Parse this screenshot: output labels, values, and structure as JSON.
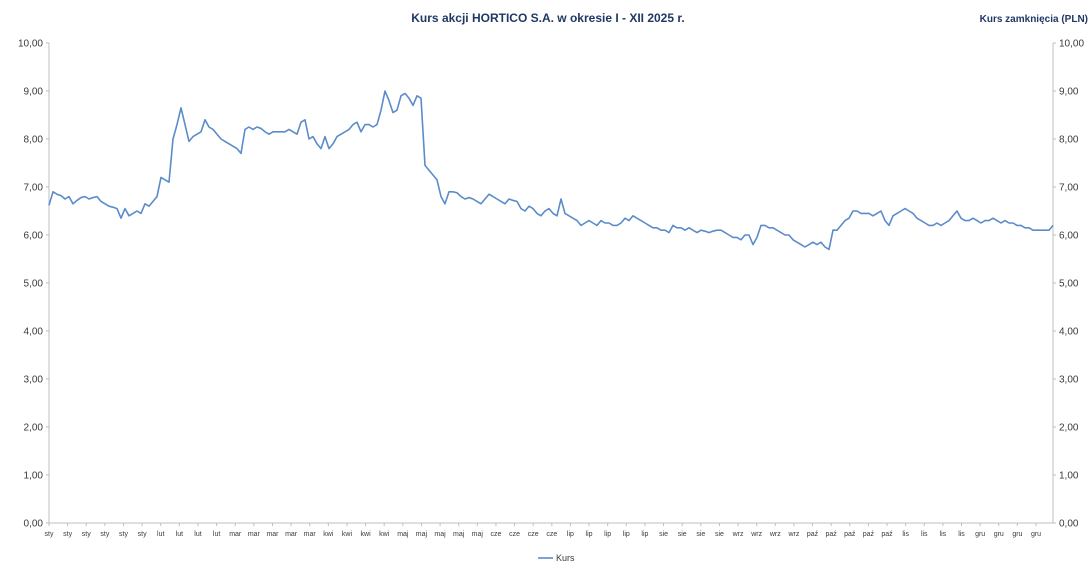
{
  "chart_data": {
    "type": "line",
    "title": "Kurs akcji HORTICO S.A. w okresie I - XII 2025 r.",
    "ylabel_right": "Kurs zamknięcia (PLN)",
    "ylim": [
      0,
      10
    ],
    "yticks": [
      "0,00",
      "1,00",
      "2,00",
      "3,00",
      "4,00",
      "5,00",
      "6,00",
      "7,00",
      "8,00",
      "9,00",
      "10,00"
    ],
    "grid": false,
    "legend": "bottom",
    "line_color": "#5b8cc9",
    "x_labels": [
      "sty",
      "sty",
      "sty",
      "sty",
      "sty",
      "sty",
      "lut",
      "lut",
      "lut",
      "lut",
      "mar",
      "mar",
      "mar",
      "mar",
      "mar",
      "kwi",
      "kwi",
      "kwi",
      "kwi",
      "maj",
      "maj",
      "maj",
      "maj",
      "maj",
      "cze",
      "cze",
      "cze",
      "cze",
      "lip",
      "lip",
      "lip",
      "lip",
      "lip",
      "sie",
      "sie",
      "sie",
      "sie",
      "wrz",
      "wrz",
      "wrz",
      "wrz",
      "paź",
      "paź",
      "paź",
      "paź",
      "paź",
      "lis",
      "lis",
      "lis",
      "lis",
      "gru",
      "gru",
      "gru",
      "gru"
    ],
    "series": [
      {
        "name": "Kurs",
        "values": [
          6.62,
          6.9,
          6.85,
          6.82,
          6.75,
          6.8,
          6.65,
          6.72,
          6.78,
          6.8,
          6.75,
          6.78,
          6.8,
          6.7,
          6.65,
          6.6,
          6.58,
          6.55,
          6.35,
          6.55,
          6.4,
          6.45,
          6.5,
          6.45,
          6.65,
          6.6,
          6.7,
          6.8,
          7.2,
          7.15,
          7.1,
          8.0,
          8.3,
          8.65,
          8.3,
          7.95,
          8.05,
          8.1,
          8.15,
          8.4,
          8.25,
          8.2,
          8.1,
          8.0,
          7.95,
          7.9,
          7.85,
          7.8,
          7.7,
          8.2,
          8.25,
          8.2,
          8.25,
          8.22,
          8.15,
          8.1,
          8.15,
          8.15,
          8.15,
          8.15,
          8.2,
          8.15,
          8.1,
          8.35,
          8.4,
          8.0,
          8.05,
          7.9,
          7.8,
          8.05,
          7.8,
          7.9,
          8.05,
          8.1,
          8.15,
          8.2,
          8.3,
          8.35,
          8.15,
          8.3,
          8.3,
          8.25,
          8.3,
          8.6,
          9.0,
          8.8,
          8.55,
          8.6,
          8.9,
          8.95,
          8.85,
          8.7,
          8.9,
          8.85,
          7.45,
          7.35,
          7.25,
          7.15,
          6.8,
          6.65,
          6.9,
          6.9,
          6.88,
          6.8,
          6.75,
          6.78,
          6.75,
          6.7,
          6.65,
          6.75,
          6.85,
          6.8,
          6.75,
          6.7,
          6.65,
          6.75,
          6.72,
          6.7,
          6.55,
          6.5,
          6.6,
          6.55,
          6.45,
          6.4,
          6.5,
          6.55,
          6.45,
          6.4,
          6.75,
          6.45,
          6.4,
          6.35,
          6.3,
          6.2,
          6.25,
          6.3,
          6.25,
          6.2,
          6.3,
          6.25,
          6.25,
          6.2,
          6.2,
          6.25,
          6.35,
          6.3,
          6.4,
          6.35,
          6.3,
          6.25,
          6.2,
          6.15,
          6.15,
          6.1,
          6.1,
          6.05,
          6.2,
          6.15,
          6.15,
          6.1,
          6.15,
          6.1,
          6.05,
          6.1,
          6.08,
          6.05,
          6.08,
          6.1,
          6.1,
          6.05,
          6.0,
          5.95,
          5.95,
          5.9,
          6.0,
          6.0,
          5.8,
          5.95,
          6.2,
          6.2,
          6.15,
          6.15,
          6.1,
          6.05,
          6.0,
          6.0,
          5.9,
          5.85,
          5.8,
          5.75,
          5.8,
          5.85,
          5.8,
          5.85,
          5.75,
          5.7,
          6.1,
          6.1,
          6.2,
          6.3,
          6.35,
          6.5,
          6.5,
          6.45,
          6.45,
          6.45,
          6.4,
          6.45,
          6.5,
          6.3,
          6.2,
          6.4,
          6.45,
          6.5,
          6.55,
          6.5,
          6.45,
          6.35,
          6.3,
          6.25,
          6.2,
          6.2,
          6.25,
          6.2,
          6.25,
          6.3,
          6.4,
          6.5,
          6.35,
          6.3,
          6.3,
          6.35,
          6.3,
          6.25,
          6.3,
          6.3,
          6.35,
          6.3,
          6.25,
          6.3,
          6.25,
          6.25,
          6.2,
          6.2,
          6.15,
          6.15,
          6.1,
          6.1,
          6.1,
          6.1,
          6.1,
          6.2
        ]
      }
    ]
  }
}
